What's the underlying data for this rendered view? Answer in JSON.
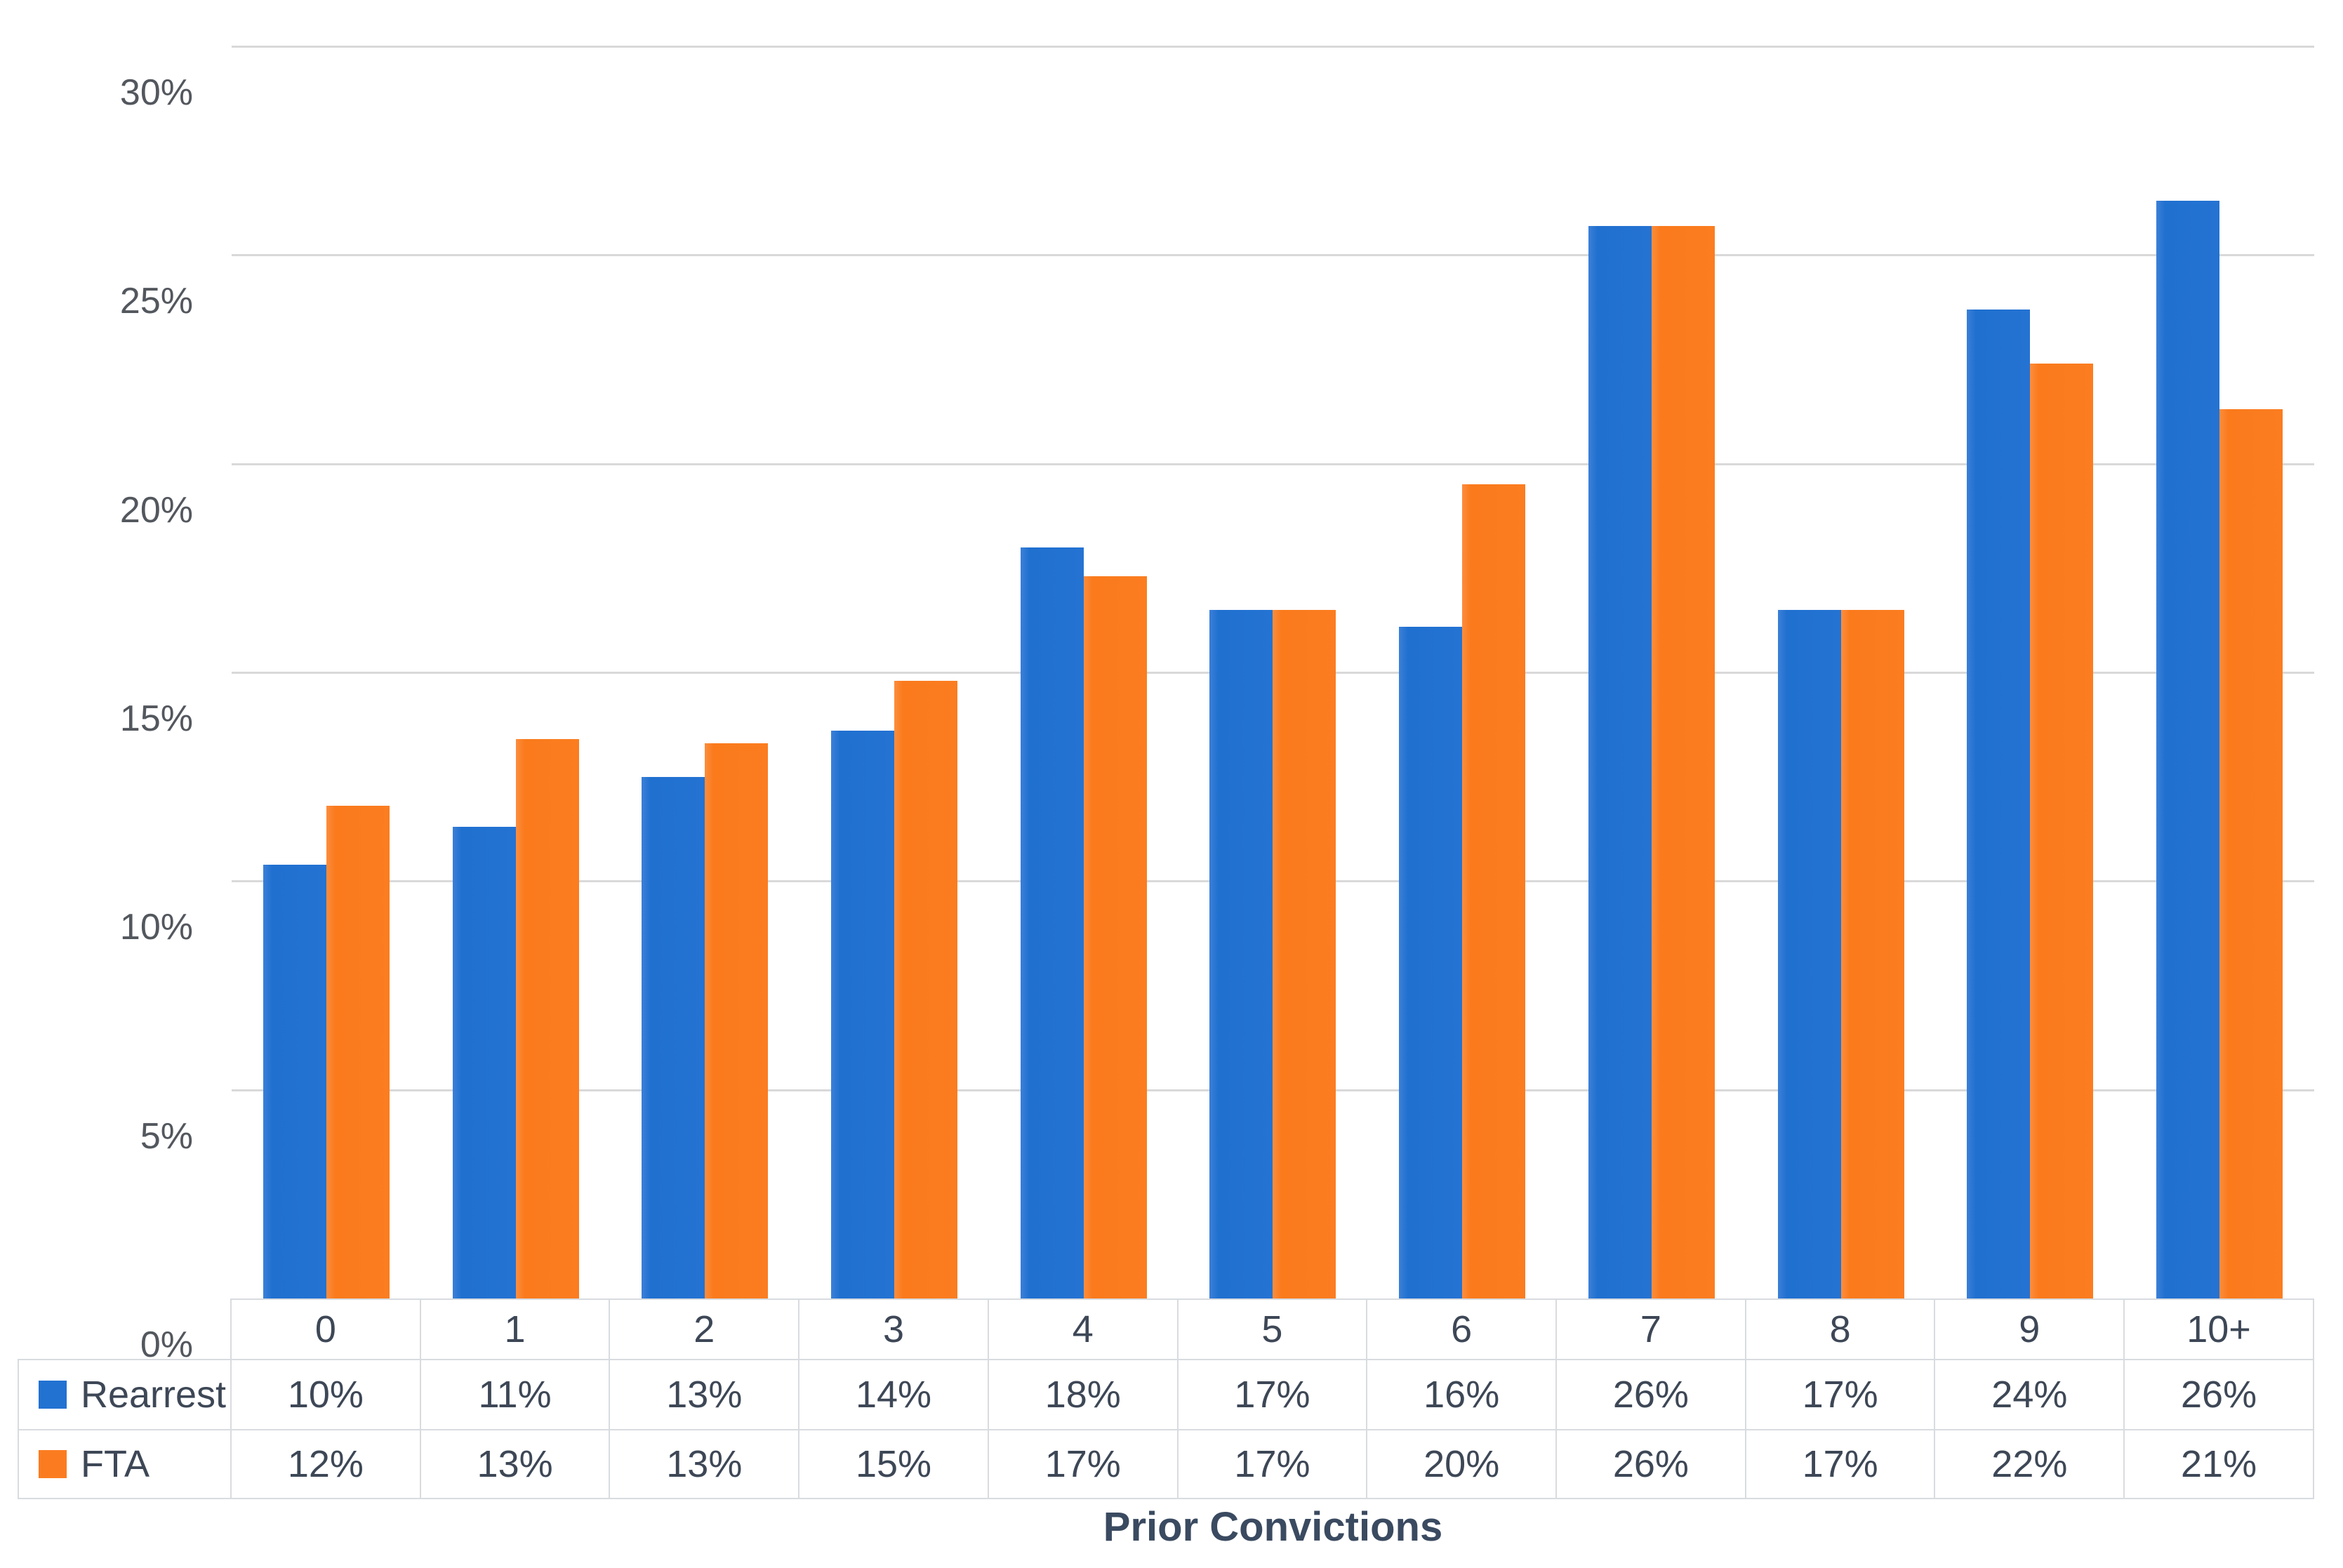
{
  "chart_data": {
    "type": "bar",
    "title": "",
    "xlabel": "Prior Convictions",
    "ylabel": "",
    "categories": [
      "0",
      "1",
      "2",
      "3",
      "4",
      "5",
      "6",
      "7",
      "8",
      "9",
      "10+"
    ],
    "series": [
      {
        "name": "Rearrest",
        "color": "#2272d2",
        "values": [
          10.4,
          11.3,
          12.5,
          13.6,
          18.0,
          16.5,
          16.1,
          25.7,
          16.5,
          23.7,
          26.3
        ],
        "display_values": [
          "10%",
          "11%",
          "13%",
          "14%",
          "18%",
          "17%",
          "16%",
          "26%",
          "17%",
          "24%",
          "26%"
        ]
      },
      {
        "name": "FTA",
        "color": "#fb7c20",
        "values": [
          11.8,
          13.4,
          13.3,
          14.8,
          17.3,
          16.5,
          19.5,
          25.7,
          16.5,
          22.4,
          21.3
        ],
        "display_values": [
          "12%",
          "13%",
          "13%",
          "15%",
          "17%",
          "17%",
          "20%",
          "26%",
          "17%",
          "22%",
          "21%"
        ]
      }
    ],
    "ylim": [
      0,
      30
    ],
    "ytick_step": 5,
    "ytick_labels": [
      "0%",
      "5%",
      "10%",
      "15%",
      "20%",
      "25%",
      "30%"
    ],
    "grid": true,
    "gridline_color": "#d9d9d9",
    "legend_position": "table-left",
    "data_table_shown": true
  },
  "axis": {
    "x_title": "Prior Convictions"
  },
  "colors": {
    "rearrest": "#2272d2",
    "fta": "#fb7c20",
    "axis_text": "#53575e",
    "table_text": "#3d4756",
    "border": "#d8dbdf"
  }
}
